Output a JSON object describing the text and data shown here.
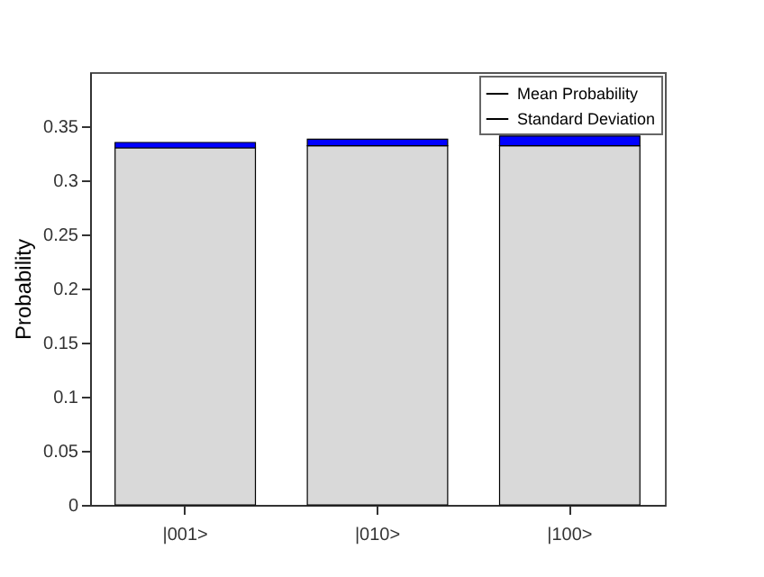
{
  "chart_data": {
    "type": "bar",
    "ylabel": "Probability",
    "categories": [
      "|001>",
      "|010>",
      "|100>"
    ],
    "stacked": true,
    "series": [
      {
        "name": "Mean Probability",
        "color": "#d9d9d9",
        "values": [
          0.33,
          0.332,
          0.332
        ]
      },
      {
        "name": "Standard Deviation",
        "color": "#0000ff",
        "values": [
          0.005,
          0.006,
          0.009
        ]
      }
    ],
    "ylim": [
      0,
      0.4
    ],
    "yticks": [
      0,
      0.05,
      0.1,
      0.15,
      0.2,
      0.25,
      0.3,
      0.35
    ],
    "grid": false,
    "legend": "top right"
  }
}
